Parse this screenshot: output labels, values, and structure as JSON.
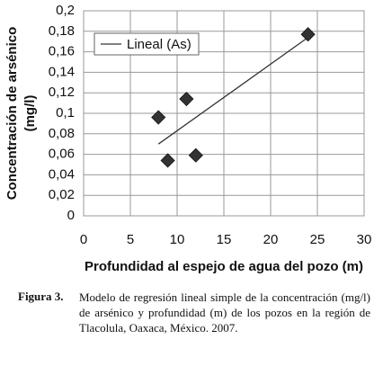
{
  "chart_data": {
    "type": "scatter",
    "ylabel": [
      "Concentración de arsénico",
      "(mg/l)"
    ],
    "xlabel": "Profundidad al espejo de agua del pozo (m)",
    "x": [
      8,
      9,
      11,
      12,
      24
    ],
    "values": [
      0.096,
      0.054,
      0.114,
      0.059,
      0.177
    ],
    "color": "#333333",
    "trendline": {
      "name": "Lineal (As)",
      "x": [
        8,
        24
      ],
      "values": [
        0.07,
        0.174
      ],
      "color": "#333333"
    },
    "legend": "top-left",
    "grid": true,
    "xlim": [
      0,
      30
    ],
    "xticks": [
      0,
      5,
      10,
      15,
      20,
      25,
      30
    ],
    "ylim": [
      0,
      0.2
    ],
    "yticks": [
      0,
      {
        "value": 0.02,
        "label": "0,02"
      },
      {
        "value": 0.04,
        "label": "0,04"
      },
      {
        "value": 0.06,
        "label": "0,06"
      },
      {
        "value": 0.08,
        "label": "0,08"
      },
      {
        "value": 0.1,
        "label": "0,1"
      },
      {
        "value": 0.12,
        "label": "0,12"
      },
      {
        "value": 0.14,
        "label": "0,14"
      },
      {
        "value": 0.16,
        "label": "0,16"
      },
      {
        "value": 0.18,
        "label": "0,18"
      },
      {
        "value": 0.2,
        "label": "0,2"
      }
    ]
  },
  "caption": {
    "label": "Figura 3.",
    "text": "Modelo de regresión lineal simple de la concentración (mg/l) de arsénico y profundidad (m) de los pozos en la región de Tlacolula, Oaxaca, México. 2007."
  }
}
